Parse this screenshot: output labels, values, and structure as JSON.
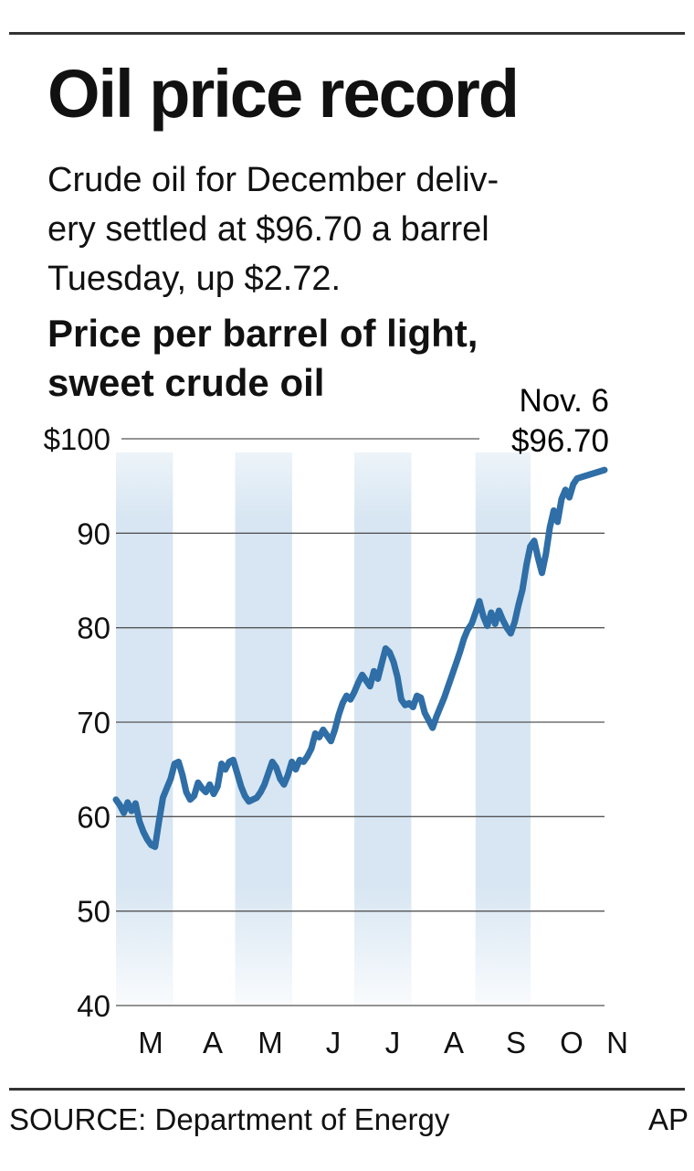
{
  "header": {
    "title": "Oil price record",
    "subtitle_lines": [
      "Crude oil for December deliv-",
      "ery settled at $96.70 a barrel",
      "Tuesday, up $2.72."
    ]
  },
  "chart_data": {
    "type": "line",
    "title_lines": [
      "Price per barrel of light,",
      "sweet crude oil"
    ],
    "xlabel": "",
    "ylabel": "",
    "ylim": [
      40,
      100
    ],
    "y_ticks": [
      100,
      90,
      80,
      70,
      60,
      50,
      40
    ],
    "y_tick_labels": [
      "$100",
      "90",
      "80",
      "70",
      "60",
      "50",
      "40"
    ],
    "x_tick_labels": [
      "M",
      "A",
      "M",
      "J",
      "J",
      "A",
      "S",
      "O",
      "N"
    ],
    "grid": true,
    "series": [
      {
        "color": "#2f6ea6",
        "points": [
          [
            "2007-03-01",
            61.8
          ],
          [
            "2007-03-03",
            61.2
          ],
          [
            "2007-03-05",
            60.4
          ],
          [
            "2007-03-07",
            61.5
          ],
          [
            "2007-03-09",
            60.6
          ],
          [
            "2007-03-11",
            61.4
          ],
          [
            "2007-03-13",
            59.5
          ],
          [
            "2007-03-15",
            58.4
          ],
          [
            "2007-03-17",
            57.6
          ],
          [
            "2007-03-19",
            57.0
          ],
          [
            "2007-03-21",
            56.8
          ],
          [
            "2007-03-23",
            59.5
          ],
          [
            "2007-03-25",
            62.0
          ],
          [
            "2007-03-27",
            63.0
          ],
          [
            "2007-03-29",
            64.0
          ],
          [
            "2007-03-31",
            65.6
          ],
          [
            "2007-04-02",
            65.8
          ],
          [
            "2007-04-04",
            64.4
          ],
          [
            "2007-04-06",
            62.6
          ],
          [
            "2007-04-08",
            61.8
          ],
          [
            "2007-04-10",
            62.2
          ],
          [
            "2007-04-12",
            63.6
          ],
          [
            "2007-04-14",
            63.0
          ],
          [
            "2007-04-16",
            62.6
          ],
          [
            "2007-04-18",
            63.4
          ],
          [
            "2007-04-20",
            62.4
          ],
          [
            "2007-04-22",
            63.2
          ],
          [
            "2007-04-24",
            65.6
          ],
          [
            "2007-04-26",
            65.0
          ],
          [
            "2007-04-28",
            65.8
          ],
          [
            "2007-04-30",
            66.0
          ],
          [
            "2007-05-02",
            64.6
          ],
          [
            "2007-05-04",
            63.2
          ],
          [
            "2007-05-06",
            62.2
          ],
          [
            "2007-05-08",
            61.6
          ],
          [
            "2007-05-10",
            61.8
          ],
          [
            "2007-05-12",
            62.0
          ],
          [
            "2007-05-14",
            62.6
          ],
          [
            "2007-05-16",
            63.4
          ],
          [
            "2007-05-18",
            64.6
          ],
          [
            "2007-05-20",
            65.8
          ],
          [
            "2007-05-22",
            65.2
          ],
          [
            "2007-05-24",
            64.0
          ],
          [
            "2007-05-26",
            63.4
          ],
          [
            "2007-05-28",
            64.4
          ],
          [
            "2007-05-30",
            65.8
          ],
          [
            "2007-06-01",
            65.0
          ],
          [
            "2007-06-03",
            66.0
          ],
          [
            "2007-06-05",
            65.8
          ],
          [
            "2007-06-07",
            66.4
          ],
          [
            "2007-06-09",
            67.2
          ],
          [
            "2007-06-11",
            68.8
          ],
          [
            "2007-06-13",
            68.4
          ],
          [
            "2007-06-15",
            69.2
          ],
          [
            "2007-06-17",
            68.6
          ],
          [
            "2007-06-19",
            68.0
          ],
          [
            "2007-06-21",
            69.2
          ],
          [
            "2007-06-23",
            70.8
          ],
          [
            "2007-06-25",
            72.0
          ],
          [
            "2007-06-27",
            72.8
          ],
          [
            "2007-06-29",
            72.4
          ],
          [
            "2007-07-01",
            73.2
          ],
          [
            "2007-07-03",
            74.2
          ],
          [
            "2007-07-05",
            75.0
          ],
          [
            "2007-07-07",
            74.4
          ],
          [
            "2007-07-09",
            73.8
          ],
          [
            "2007-07-11",
            75.4
          ],
          [
            "2007-07-13",
            74.6
          ],
          [
            "2007-07-15",
            76.2
          ],
          [
            "2007-07-17",
            77.8
          ],
          [
            "2007-07-19",
            77.4
          ],
          [
            "2007-07-21",
            76.4
          ],
          [
            "2007-07-23",
            74.8
          ],
          [
            "2007-07-25",
            72.4
          ],
          [
            "2007-07-27",
            71.8
          ],
          [
            "2007-07-29",
            72.0
          ],
          [
            "2007-07-31",
            71.6
          ],
          [
            "2007-08-02",
            72.8
          ],
          [
            "2007-08-04",
            72.6
          ],
          [
            "2007-08-06",
            71.0
          ],
          [
            "2007-08-08",
            70.2
          ],
          [
            "2007-08-10",
            69.4
          ],
          [
            "2007-08-12",
            70.6
          ],
          [
            "2007-08-14",
            71.6
          ],
          [
            "2007-08-16",
            72.6
          ],
          [
            "2007-08-18",
            73.8
          ],
          [
            "2007-08-20",
            75.0
          ],
          [
            "2007-08-22",
            76.2
          ],
          [
            "2007-08-24",
            77.4
          ],
          [
            "2007-08-26",
            78.8
          ],
          [
            "2007-08-28",
            79.8
          ],
          [
            "2007-08-30",
            80.4
          ],
          [
            "2007-09-01",
            81.6
          ],
          [
            "2007-09-03",
            82.8
          ],
          [
            "2007-09-05",
            81.2
          ],
          [
            "2007-09-07",
            80.2
          ],
          [
            "2007-09-09",
            81.6
          ],
          [
            "2007-09-11",
            80.4
          ],
          [
            "2007-09-13",
            81.8
          ],
          [
            "2007-09-15",
            80.8
          ],
          [
            "2007-09-17",
            80.0
          ],
          [
            "2007-09-19",
            79.4
          ],
          [
            "2007-09-21",
            80.6
          ],
          [
            "2007-09-23",
            82.4
          ],
          [
            "2007-09-25",
            84.0
          ],
          [
            "2007-09-27",
            86.6
          ],
          [
            "2007-09-29",
            88.6
          ],
          [
            "2007-10-01",
            89.2
          ],
          [
            "2007-10-03",
            87.4
          ],
          [
            "2007-10-05",
            85.8
          ],
          [
            "2007-10-07",
            87.8
          ],
          [
            "2007-10-09",
            90.6
          ],
          [
            "2007-10-11",
            92.4
          ],
          [
            "2007-10-13",
            91.2
          ],
          [
            "2007-10-15",
            93.6
          ],
          [
            "2007-10-17",
            94.6
          ],
          [
            "2007-10-19",
            93.8
          ],
          [
            "2007-10-21",
            95.2
          ],
          [
            "2007-10-23",
            95.8
          ],
          [
            "2007-11-06",
            96.7
          ]
        ]
      }
    ],
    "annotation": {
      "date": "2007-11-06",
      "value": 96.7,
      "label_lines": [
        "Nov. 6",
        "$96.70"
      ]
    },
    "band_color": "#d7e6f2"
  },
  "footer": {
    "source": "SOURCE: Department of Energy",
    "credit": "AP"
  }
}
